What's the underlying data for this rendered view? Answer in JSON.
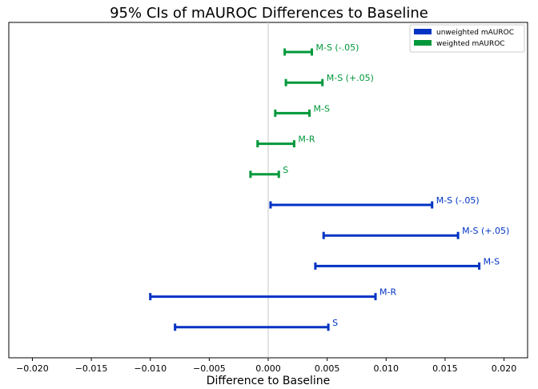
{
  "chart_data": {
    "type": "errorbar",
    "title": "95% CIs of mAUROC Differences to Baseline",
    "xlabel": "Difference to Baseline",
    "ylabel": "",
    "xlim": [
      -0.022,
      0.022
    ],
    "xticks": [
      -0.02,
      -0.015,
      -0.01,
      -0.005,
      0.0,
      0.005,
      0.01,
      0.015,
      0.02
    ],
    "xtick_labels": [
      "−0.020",
      "−0.015",
      "−0.010",
      "−0.005",
      "0.000",
      "0.005",
      "0.010",
      "0.015",
      "0.020"
    ],
    "reference_line_x": 0.0,
    "grid": false,
    "legend_position": "top-right",
    "series": [
      {
        "name": "weighted mAUROC",
        "color": "#00983a",
        "intervals": [
          {
            "label": "M-S (-.05)",
            "low": 0.0014,
            "high": 0.0037
          },
          {
            "label": "M-S (+.05)",
            "low": 0.0015,
            "high": 0.0046
          },
          {
            "label": "M-S",
            "low": 0.0006,
            "high": 0.0035
          },
          {
            "label": "M-R",
            "low": -0.0009,
            "high": 0.0022
          },
          {
            "label": "S",
            "low": -0.0015,
            "high": 0.0009
          }
        ]
      },
      {
        "name": "unweighted mAUROC",
        "color": "#0033c4",
        "intervals": [
          {
            "label": "M-S (-.05)",
            "low": 0.0002,
            "high": 0.0139
          },
          {
            "label": "M-S (+.05)",
            "low": 0.0047,
            "high": 0.0161
          },
          {
            "label": "M-S",
            "low": 0.004,
            "high": 0.0179
          },
          {
            "label": "M-R",
            "low": -0.01,
            "high": 0.0091
          },
          {
            "label": "S",
            "low": -0.0079,
            "high": 0.0051
          }
        ]
      }
    ],
    "legend": [
      "unweighted mAUROC",
      "weighted mAUROC"
    ]
  }
}
